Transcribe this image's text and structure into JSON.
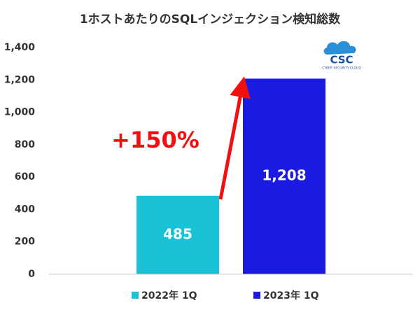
{
  "chart_data": {
    "type": "bar",
    "title": "1ホストあたりのSQLインジェクション検知総数",
    "categories": [
      null
    ],
    "series": [
      {
        "name": "2022年 1Q",
        "color": "#19c3d5",
        "values": [
          485
        ]
      },
      {
        "name": "2023年 1Q",
        "color": "#1a1ae0",
        "values": [
          1208
        ],
        "value_labels": [
          "1,208"
        ]
      }
    ],
    "ylim": [
      0,
      1400
    ],
    "yticks": [
      0,
      200,
      400,
      600,
      800,
      {
        "value": 1000,
        "label": "1,000"
      },
      {
        "value": 1200,
        "label": "1,200"
      },
      {
        "value": 1400,
        "label": "1,400"
      }
    ],
    "grid": false,
    "annotation": "+150%",
    "logo": {
      "text": "CSC",
      "subtext": "CYBER SECURITY CLOUD"
    }
  }
}
